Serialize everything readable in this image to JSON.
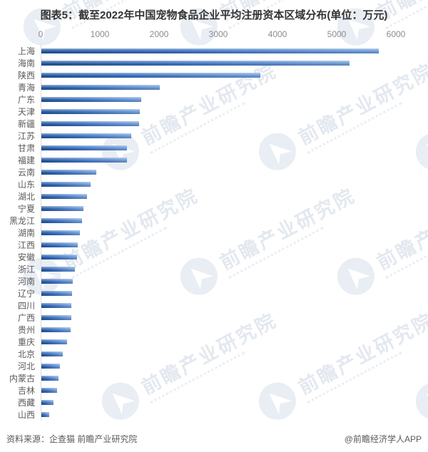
{
  "title": "图表5：截至2022年中国宠物食品企业平均注册资本区域分布(单位：万元)",
  "watermark": {
    "text": "前瞻产业研究院"
  },
  "footer": {
    "source": "资料来源：企查猫 前瞻产业研究院",
    "credit": "@前瞻经济学人APP"
  },
  "colors": {
    "bar_dark": "#24589f",
    "bar_mid": "#3a6fc0",
    "bar_light": "#6f9dd9",
    "axis_text": "#8c8c8c",
    "label_text": "#595959",
    "axis_line": "#dcdcdc",
    "title_text": "#333333",
    "watermark": "#e3e8f0"
  },
  "chart_data": {
    "type": "bar",
    "orientation": "horizontal",
    "title": "截至2022年中国宠物食品企业平均注册资本区域分布",
    "unit": "万元",
    "xlabel": "",
    "ylabel": "",
    "xlim": [
      0,
      6000
    ],
    "x_ticks": [
      0,
      1000,
      2000,
      3000,
      4000,
      5000,
      6000
    ],
    "grid": false,
    "legend": "none",
    "categories": [
      "上海",
      "海南",
      "陕西",
      "青海",
      "广东",
      "天津",
      "新疆",
      "江苏",
      "甘肃",
      "福建",
      "云南",
      "山东",
      "湖北",
      "宁夏",
      "黑龙江",
      "湖南",
      "江西",
      "安徽",
      "浙江",
      "河南",
      "辽宁",
      "四川",
      "广西",
      "贵州",
      "重庆",
      "北京",
      "河北",
      "内蒙古",
      "吉林",
      "西藏",
      "山西"
    ],
    "values": [
      5700,
      5200,
      3700,
      2000,
      1690,
      1660,
      1650,
      1520,
      1450,
      1440,
      930,
      830,
      770,
      710,
      690,
      650,
      610,
      600,
      570,
      530,
      520,
      510,
      500,
      490,
      430,
      360,
      310,
      290,
      265,
      200,
      130
    ]
  }
}
